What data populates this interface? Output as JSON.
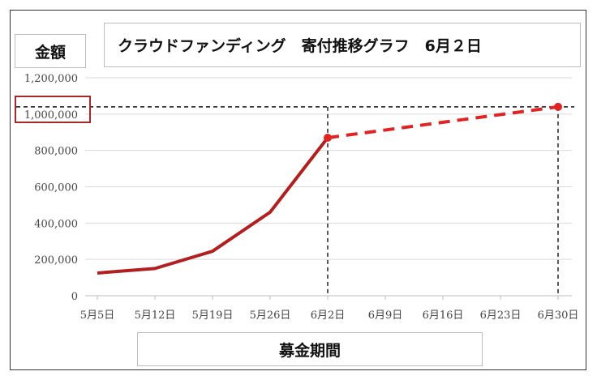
{
  "chart_data": {
    "type": "line",
    "title": "クラウドファンディング　寄付推移グラフ　6月２日",
    "ylabel": "金額",
    "xlabel": "募金期間",
    "categories": [
      "5月5日",
      "5月12日",
      "5月19日",
      "5月26日",
      "6月2日",
      "6月9日",
      "6月16日",
      "6月23日",
      "6月30日"
    ],
    "yticks": [
      "0",
      "200,000",
      "400,000",
      "600,000",
      "800,000",
      "1,000,000",
      "1,200,000"
    ],
    "ylim": [
      0,
      1200000
    ],
    "grid": true,
    "series": [
      {
        "style": "solid",
        "color": "#b11f1f",
        "x": [
          "5月5日",
          "5月12日",
          "5月19日",
          "5月26日",
          "6月2日"
        ],
        "values": [
          125000,
          150000,
          245000,
          460000,
          870000
        ]
      },
      {
        "style": "dashed",
        "color": "#e02424",
        "x": [
          "6月2日",
          "6月30日"
        ],
        "values": [
          870000,
          1040000
        ]
      }
    ],
    "reference_lines": {
      "horizontal_value": 1040000,
      "vertical_at": [
        "6月2日",
        "6月30日"
      ]
    },
    "highlighted_tick": "1,000,000"
  }
}
